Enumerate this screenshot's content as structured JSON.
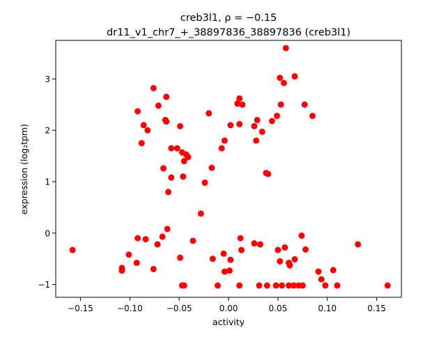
{
  "chart_data": {
    "type": "scatter",
    "title_line1": "creb3l1, ρ = −0.15",
    "title_line2": "dr11_v1_chr7_+_38897836_38897836 (creb3l1)",
    "xlabel": "activity",
    "ylabel": "expression (log₂tpm)",
    "xlim": [
      -0.175,
      0.175
    ],
    "ylim": [
      -1.25,
      3.75
    ],
    "xticks": [
      -0.15,
      -0.1,
      -0.05,
      0.0,
      0.05,
      0.1,
      0.15
    ],
    "xtick_labels": [
      "−0.15",
      "−0.10",
      "−0.05",
      "0.00",
      "0.05",
      "0.10",
      "0.15"
    ],
    "yticks": [
      -1,
      0,
      1,
      2,
      3
    ],
    "ytick_labels": [
      "−1",
      "0",
      "1",
      "2",
      "3"
    ],
    "grid": false,
    "point_color": "#ff0000",
    "points": [
      [
        -0.158,
        -0.33
      ],
      [
        -0.108,
        -0.68
      ],
      [
        -0.108,
        -0.73
      ],
      [
        -0.101,
        -0.42
      ],
      [
        -0.093,
        -0.58
      ],
      [
        -0.092,
        -0.1
      ],
      [
        -0.092,
        2.37
      ],
      [
        -0.088,
        1.75
      ],
      [
        -0.086,
        2.1
      ],
      [
        -0.084,
        -0.12
      ],
      [
        -0.082,
        2.0
      ],
      [
        -0.076,
        -0.7
      ],
      [
        -0.076,
        2.82
      ],
      [
        -0.072,
        -0.22
      ],
      [
        -0.071,
        2.48
      ],
      [
        -0.067,
        -0.07
      ],
      [
        -0.066,
        1.26
      ],
      [
        -0.064,
        2.2
      ],
      [
        -0.063,
        2.17
      ],
      [
        -0.063,
        2.65
      ],
      [
        -0.062,
        0.08
      ],
      [
        -0.061,
        0.8
      ],
      [
        -0.058,
        1.65
      ],
      [
        -0.058,
        1.08
      ],
      [
        -0.052,
        1.65
      ],
      [
        -0.049,
        2.08
      ],
      [
        -0.049,
        -0.48
      ],
      [
        -0.047,
        1.57
      ],
      [
        -0.047,
        -1.02
      ],
      [
        -0.046,
        1.1
      ],
      [
        -0.045,
        -1.02
      ],
      [
        -0.045,
        1.4
      ],
      [
        -0.043,
        1.53
      ],
      [
        -0.041,
        1.48
      ],
      [
        -0.036,
        -0.15
      ],
      [
        -0.028,
        0.38
      ],
      [
        -0.024,
        0.98
      ],
      [
        -0.02,
        2.33
      ],
      [
        -0.017,
        1.27
      ],
      [
        -0.016,
        -0.5
      ],
      [
        -0.011,
        -1.02
      ],
      [
        -0.007,
        1.65
      ],
      [
        -0.005,
        -0.4
      ],
      [
        -0.004,
        1.8
      ],
      [
        -0.004,
        -0.75
      ],
      [
        0.001,
        -0.73
      ],
      [
        0.002,
        2.1
      ],
      [
        0.002,
        -0.52
      ],
      [
        0.009,
        2.52
      ],
      [
        0.011,
        2.62
      ],
      [
        0.011,
        2.12
      ],
      [
        0.011,
        -1.02
      ],
      [
        0.012,
        -0.1
      ],
      [
        0.013,
        -0.33
      ],
      [
        0.014,
        2.5
      ],
      [
        0.026,
        2.08
      ],
      [
        0.026,
        -0.2
      ],
      [
        0.028,
        1.8
      ],
      [
        0.029,
        2.2
      ],
      [
        0.031,
        -1.02
      ],
      [
        0.032,
        -0.22
      ],
      [
        0.034,
        1.97
      ],
      [
        0.038,
        1.17
      ],
      [
        0.039,
        -1.02
      ],
      [
        0.04,
        1.15
      ],
      [
        0.044,
        2.18
      ],
      [
        0.048,
        -1.02
      ],
      [
        0.049,
        2.28
      ],
      [
        0.05,
        -0.33
      ],
      [
        0.052,
        -0.55
      ],
      [
        0.052,
        3.02
      ],
      [
        0.053,
        2.5
      ],
      [
        0.054,
        -1.02
      ],
      [
        0.056,
        2.92
      ],
      [
        0.057,
        -0.28
      ],
      [
        0.058,
        3.6
      ],
      [
        0.061,
        -1.02
      ],
      [
        0.061,
        -0.58
      ],
      [
        0.062,
        -0.63
      ],
      [
        0.066,
        -1.02
      ],
      [
        0.067,
        3.05
      ],
      [
        0.067,
        -0.51
      ],
      [
        0.071,
        -1.02
      ],
      [
        0.074,
        -0.05
      ],
      [
        0.075,
        -1.02
      ],
      [
        0.077,
        2.5
      ],
      [
        0.078,
        -0.32
      ],
      [
        0.085,
        2.28
      ],
      [
        0.091,
        -0.75
      ],
      [
        0.094,
        -0.9
      ],
      [
        0.098,
        -1.02
      ],
      [
        0.106,
        -0.72
      ],
      [
        0.11,
        -1.02
      ],
      [
        0.131,
        -0.22
      ],
      [
        0.161,
        -1.02
      ]
    ]
  }
}
